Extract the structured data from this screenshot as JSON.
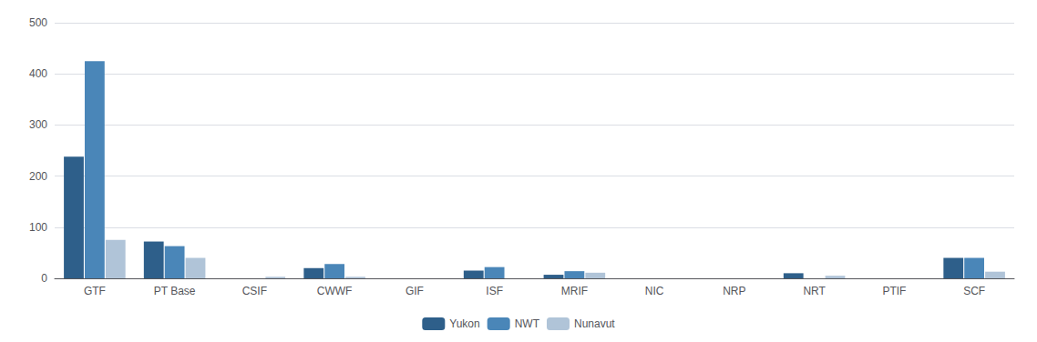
{
  "chart_data": {
    "type": "bar",
    "categories": [
      "GTF",
      "PT Base",
      "CSIF",
      "CWWF",
      "GIF",
      "ISF",
      "MRIF",
      "NIC",
      "NRP",
      "NRT",
      "PTIF",
      "SCF"
    ],
    "series": [
      {
        "name": "Yukon",
        "color": "#2E5F8A",
        "values": [
          238,
          72,
          0,
          20,
          0,
          15,
          7,
          0,
          0,
          10,
          0,
          40
        ]
      },
      {
        "name": "NWT",
        "color": "#4A86B8",
        "values": [
          425,
          63,
          0,
          28,
          0,
          22,
          14,
          0,
          0,
          0,
          0,
          40
        ]
      },
      {
        "name": "Nunavut",
        "color": "#B0C4D8",
        "values": [
          75,
          40,
          3,
          3,
          0,
          0,
          11,
          0,
          0,
          5,
          0,
          13
        ]
      }
    ],
    "ylim": [
      0,
      500
    ],
    "yticks": [
      0,
      100,
      200,
      300,
      400,
      500
    ],
    "grid": true,
    "legend": "bottom"
  }
}
